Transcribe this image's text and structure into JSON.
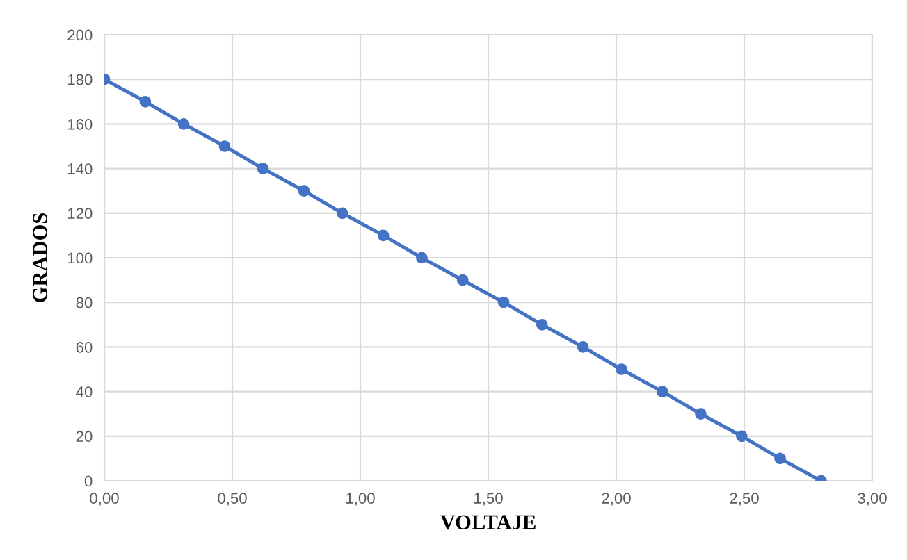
{
  "chart_data": {
    "type": "line",
    "xlabel": "VOLTAJE",
    "ylabel": "GRADOS",
    "x": [
      0,
      0.16,
      0.31,
      0.47,
      0.62,
      0.78,
      0.93,
      1.09,
      1.24,
      1.4,
      1.56,
      1.71,
      1.87,
      2.02,
      2.18,
      2.33,
      2.49,
      2.64,
      2.8
    ],
    "series": [
      {
        "color": "#4472c4",
        "values": [
          180,
          170,
          160,
          150,
          140,
          130,
          120,
          110,
          100,
          90,
          80,
          70,
          60,
          50,
          40,
          30,
          20,
          10,
          0
        ]
      }
    ],
    "xlim": [
      0,
      3
    ],
    "xticks": [
      {
        "value": 0,
        "label": "0,00"
      },
      {
        "value": 0.5,
        "label": "0,50"
      },
      {
        "value": 1,
        "label": "1,00"
      },
      {
        "value": 1.5,
        "label": "1,50"
      },
      {
        "value": 2,
        "label": "2,00"
      },
      {
        "value": 2.5,
        "label": "2,50"
      },
      {
        "value": 3,
        "label": "3,00"
      }
    ],
    "ylim": [
      0,
      200
    ],
    "yticks": [
      0,
      20,
      40,
      60,
      80,
      100,
      120,
      140,
      160,
      180,
      200
    ],
    "grid": true,
    "marker": "circle",
    "line_style": "solid"
  }
}
